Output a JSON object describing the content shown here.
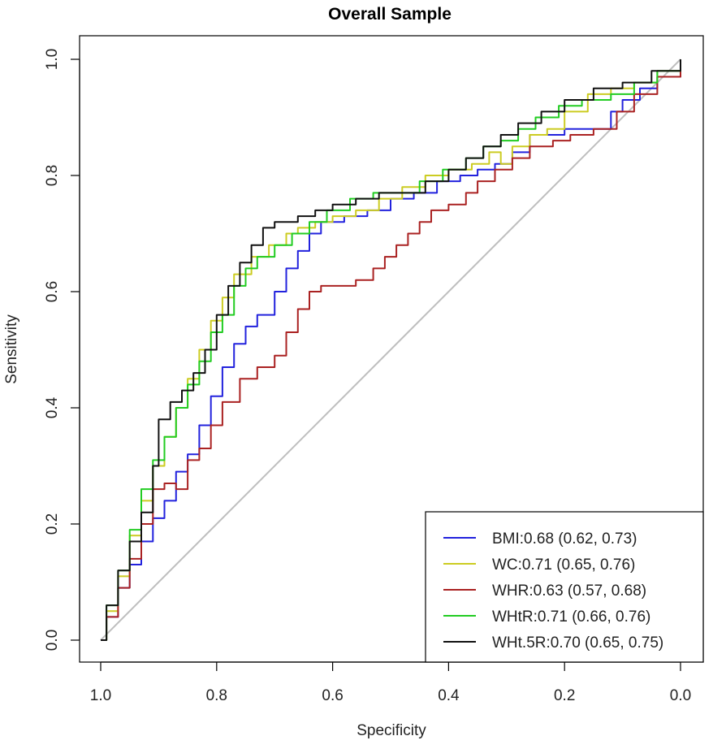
{
  "chart_data": {
    "type": "line",
    "title": "Overall Sample",
    "xlabel": "Specificity",
    "ylabel": "Sensitivity",
    "xlim": [
      1.0,
      0.0
    ],
    "ylim": [
      0.0,
      1.0
    ],
    "x_reversed": true,
    "grid": false,
    "legend_position": "bottom-right",
    "x_ticks": [
      1.0,
      0.8,
      0.6,
      0.4,
      0.2,
      0.0
    ],
    "x_tick_labels": [
      "1.0",
      "0.8",
      "0.6",
      "0.4",
      "0.2",
      "0.0"
    ],
    "y_ticks": [
      0.0,
      0.2,
      0.4,
      0.6,
      0.8,
      1.0
    ],
    "y_tick_labels": [
      "0.0",
      "0.2",
      "0.4",
      "0.6",
      "0.8",
      "1.0"
    ],
    "reference_line": {
      "from": [
        1.0,
        0.0
      ],
      "to": [
        0.0,
        1.0
      ],
      "color": "#bebebe"
    },
    "series": [
      {
        "name": "BMI",
        "legend_label": "BMI:0.68 (0.62, 0.73)",
        "color": "#2222dd",
        "specificity": [
          1.0,
          0.99,
          0.97,
          0.95,
          0.93,
          0.91,
          0.89,
          0.87,
          0.85,
          0.83,
          0.81,
          0.79,
          0.77,
          0.75,
          0.73,
          0.7,
          0.68,
          0.66,
          0.64,
          0.62,
          0.58,
          0.54,
          0.5,
          0.46,
          0.42,
          0.38,
          0.35,
          0.32,
          0.29,
          0.26,
          0.23,
          0.2,
          0.17,
          0.13,
          0.12,
          0.1,
          0.07,
          0.04,
          0.0
        ],
        "sensitivity": [
          0.0,
          0.04,
          0.09,
          0.13,
          0.17,
          0.21,
          0.24,
          0.29,
          0.32,
          0.37,
          0.42,
          0.47,
          0.51,
          0.54,
          0.56,
          0.6,
          0.64,
          0.67,
          0.7,
          0.72,
          0.73,
          0.74,
          0.76,
          0.77,
          0.79,
          0.8,
          0.81,
          0.82,
          0.84,
          0.87,
          0.87,
          0.88,
          0.88,
          0.88,
          0.91,
          0.93,
          0.95,
          0.97,
          1.0
        ]
      },
      {
        "name": "WC",
        "legend_label": "WC:0.71 (0.65, 0.76)",
        "color": "#cccc22",
        "specificity": [
          1.0,
          0.99,
          0.97,
          0.95,
          0.93,
          0.91,
          0.89,
          0.87,
          0.85,
          0.83,
          0.81,
          0.79,
          0.77,
          0.74,
          0.71,
          0.68,
          0.66,
          0.63,
          0.6,
          0.56,
          0.52,
          0.48,
          0.44,
          0.4,
          0.36,
          0.33,
          0.31,
          0.29,
          0.26,
          0.23,
          0.2,
          0.16,
          0.12,
          0.08,
          0.04,
          0.0
        ],
        "sensitivity": [
          0.0,
          0.05,
          0.11,
          0.18,
          0.24,
          0.3,
          0.35,
          0.4,
          0.45,
          0.5,
          0.55,
          0.59,
          0.63,
          0.66,
          0.68,
          0.7,
          0.71,
          0.72,
          0.73,
          0.74,
          0.76,
          0.78,
          0.8,
          0.81,
          0.82,
          0.84,
          0.82,
          0.85,
          0.87,
          0.88,
          0.91,
          0.94,
          0.95,
          0.96,
          0.98,
          1.0
        ]
      },
      {
        "name": "WHR",
        "legend_label": "WHR:0.63 (0.57, 0.68)",
        "color": "#aa2222",
        "specificity": [
          1.0,
          0.99,
          0.97,
          0.95,
          0.93,
          0.91,
          0.89,
          0.87,
          0.85,
          0.83,
          0.81,
          0.79,
          0.76,
          0.73,
          0.7,
          0.68,
          0.66,
          0.64,
          0.62,
          0.6,
          0.56,
          0.53,
          0.51,
          0.49,
          0.47,
          0.45,
          0.43,
          0.4,
          0.37,
          0.35,
          0.32,
          0.29,
          0.26,
          0.22,
          0.19,
          0.15,
          0.11,
          0.08,
          0.04,
          0.0
        ],
        "sensitivity": [
          0.0,
          0.04,
          0.09,
          0.14,
          0.2,
          0.26,
          0.27,
          0.26,
          0.31,
          0.33,
          0.37,
          0.41,
          0.45,
          0.47,
          0.49,
          0.53,
          0.57,
          0.6,
          0.61,
          0.61,
          0.62,
          0.64,
          0.66,
          0.68,
          0.7,
          0.72,
          0.74,
          0.75,
          0.77,
          0.79,
          0.81,
          0.83,
          0.85,
          0.86,
          0.87,
          0.88,
          0.91,
          0.94,
          0.97,
          1.0
        ]
      },
      {
        "name": "WHtR",
        "legend_label": "WHtR:0.71 (0.66, 0.76)",
        "color": "#22cc22",
        "specificity": [
          1.0,
          0.99,
          0.97,
          0.95,
          0.93,
          0.91,
          0.89,
          0.87,
          0.85,
          0.83,
          0.81,
          0.79,
          0.77,
          0.75,
          0.73,
          0.7,
          0.67,
          0.64,
          0.61,
          0.57,
          0.53,
          0.49,
          0.45,
          0.41,
          0.37,
          0.34,
          0.31,
          0.28,
          0.25,
          0.21,
          0.17,
          0.12,
          0.08,
          0.04,
          0.0
        ],
        "sensitivity": [
          0.0,
          0.06,
          0.12,
          0.19,
          0.26,
          0.31,
          0.35,
          0.4,
          0.44,
          0.48,
          0.53,
          0.56,
          0.61,
          0.64,
          0.66,
          0.68,
          0.7,
          0.72,
          0.74,
          0.76,
          0.77,
          0.77,
          0.79,
          0.81,
          0.83,
          0.85,
          0.86,
          0.88,
          0.9,
          0.92,
          0.93,
          0.94,
          0.96,
          0.98,
          1.0
        ]
      },
      {
        "name": "WHt.5R",
        "legend_label": "WHt.5R:0.70 (0.65, 0.75)",
        "color": "#111111",
        "specificity": [
          1.0,
          0.99,
          0.97,
          0.95,
          0.93,
          0.91,
          0.9,
          0.88,
          0.86,
          0.84,
          0.82,
          0.8,
          0.78,
          0.76,
          0.74,
          0.72,
          0.7,
          0.68,
          0.66,
          0.63,
          0.6,
          0.56,
          0.52,
          0.48,
          0.44,
          0.4,
          0.37,
          0.34,
          0.31,
          0.28,
          0.24,
          0.2,
          0.15,
          0.1,
          0.05,
          0.0
        ],
        "sensitivity": [
          0.0,
          0.06,
          0.12,
          0.17,
          0.22,
          0.3,
          0.38,
          0.41,
          0.43,
          0.46,
          0.5,
          0.56,
          0.61,
          0.65,
          0.68,
          0.71,
          0.72,
          0.72,
          0.73,
          0.74,
          0.75,
          0.76,
          0.77,
          0.77,
          0.79,
          0.81,
          0.83,
          0.85,
          0.87,
          0.89,
          0.91,
          0.93,
          0.95,
          0.96,
          0.98,
          1.0
        ]
      }
    ]
  }
}
